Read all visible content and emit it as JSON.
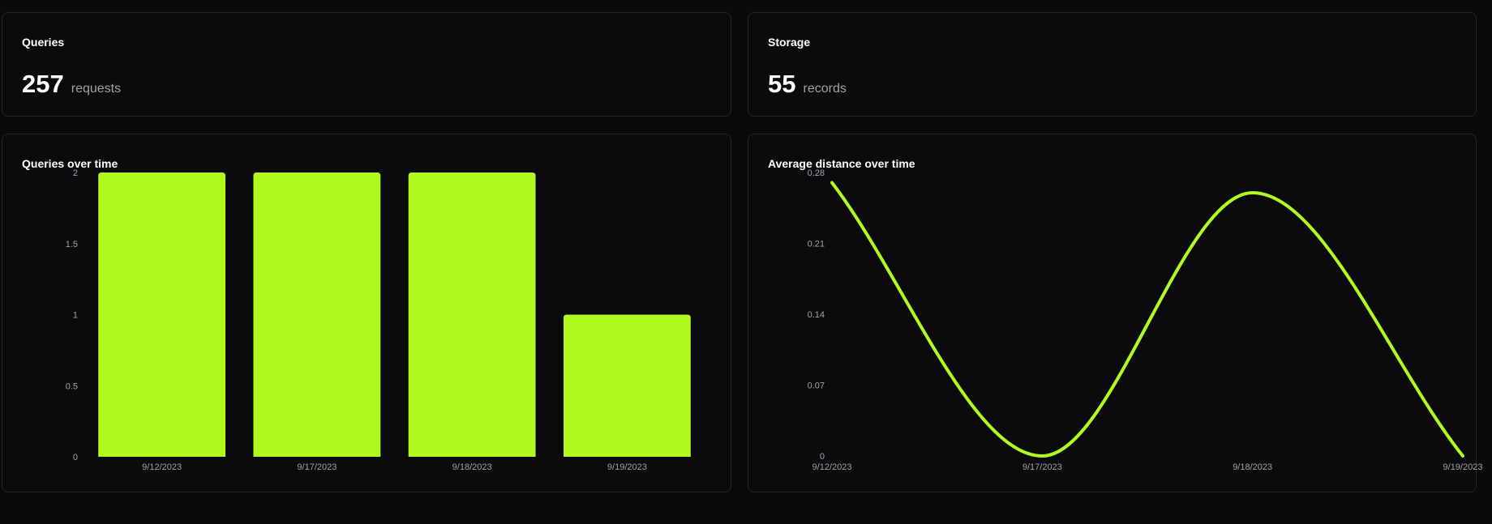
{
  "colors": {
    "accent": "#b1fa1d",
    "background": "#0a0a0b",
    "card_border": "#26262a",
    "tick_text": "#9ca3af"
  },
  "stats": [
    {
      "title": "Queries",
      "value": "257",
      "unit": "requests"
    },
    {
      "title": "Storage",
      "value": "55",
      "unit": "records"
    }
  ],
  "chart_data": [
    {
      "type": "bar",
      "title": "Queries over time",
      "categories": [
        "9/12/2023",
        "9/17/2023",
        "9/18/2023",
        "9/19/2023"
      ],
      "values": [
        2,
        2,
        2,
        1
      ],
      "yticks": [
        "0",
        "0.5",
        "1",
        "1.5",
        "2"
      ],
      "ylim": [
        0,
        2
      ],
      "grid": false,
      "legend": "none"
    },
    {
      "type": "line",
      "title": "Average distance over time",
      "categories": [
        "9/12/2023",
        "9/17/2023",
        "9/18/2023",
        "9/19/2023"
      ],
      "values": [
        0.27,
        0.0,
        0.26,
        0.0
      ],
      "yticks": [
        "0",
        "0.07",
        "0.14",
        "0.21",
        "0.28"
      ],
      "ylim": [
        0,
        0.28
      ],
      "grid": false,
      "legend": "none"
    }
  ]
}
